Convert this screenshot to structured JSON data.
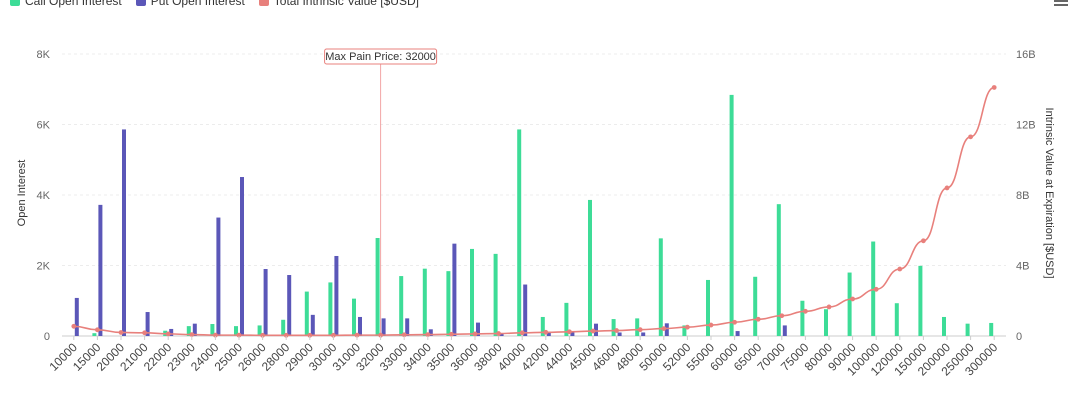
{
  "legend": {
    "call_label": "Call Open Interest",
    "put_label": "Put Open Interest",
    "intrinsic_label": "Total Intrinsic Value [$USD]"
  },
  "colors": {
    "call": "#3ddc97",
    "put": "#5b57b8",
    "intrinsic": "#e8807c",
    "maxpain": "#f2a6a6"
  },
  "chart_data": {
    "type": "bar",
    "max_pain_label": "Max Pain Price: 32000",
    "max_pain_strike": "32000",
    "ylabel_left": "Open Interest",
    "ylabel_right": "Intrinsic Value at Expiration [$USD]",
    "y_left_ticks": [
      "0",
      "2K",
      "4K",
      "6K",
      "8K"
    ],
    "y_right_ticks": [
      "0",
      "4B",
      "8B",
      "12B",
      "16B"
    ],
    "ylim_left": [
      0,
      8000
    ],
    "ylim_right": [
      0,
      16
    ],
    "categories": [
      "10000",
      "15000",
      "20000",
      "21000",
      "22000",
      "23000",
      "24000",
      "25000",
      "26000",
      "28000",
      "29000",
      "30000",
      "31000",
      "32000",
      "33000",
      "34000",
      "35000",
      "36000",
      "38000",
      "40000",
      "42000",
      "44000",
      "45000",
      "46000",
      "48000",
      "50000",
      "52000",
      "55000",
      "60000",
      "65000",
      "70000",
      "75000",
      "80000",
      "90000",
      "100000",
      "120000",
      "150000",
      "200000",
      "250000",
      "300000"
    ],
    "series": [
      {
        "name": "Call Open Interest",
        "values": [
          0,
          80,
          0,
          0,
          150,
          280,
          340,
          280,
          300,
          460,
          1260,
          1520,
          1060,
          2780,
          1700,
          1910,
          1840,
          2470,
          2330,
          5860,
          540,
          940,
          3860,
          480,
          500,
          2770,
          300,
          1590,
          6840,
          1680,
          3740,
          1000,
          760,
          1800,
          2680,
          930,
          1990,
          540,
          350,
          370
        ]
      },
      {
        "name": "Put Open Interest",
        "values": [
          1080,
          3720,
          5860,
          680,
          200,
          350,
          3360,
          4510,
          1900,
          1730,
          600,
          2270,
          540,
          500,
          500,
          190,
          2620,
          380,
          80,
          1460,
          100,
          140,
          350,
          100,
          100,
          360,
          0,
          0,
          140,
          0,
          300,
          0,
          0,
          0,
          0,
          0,
          0,
          0,
          0,
          0
        ]
      },
      {
        "name": "Total Intrinsic Value [$USD]",
        "values": [
          0.55,
          0.35,
          0.2,
          0.18,
          0.12,
          0.08,
          0.05,
          0.05,
          0.04,
          0.04,
          0.04,
          0.04,
          0.05,
          0.05,
          0.07,
          0.08,
          0.1,
          0.12,
          0.14,
          0.18,
          0.21,
          0.24,
          0.28,
          0.31,
          0.36,
          0.42,
          0.5,
          0.62,
          0.78,
          0.95,
          1.15,
          1.4,
          1.65,
          2.1,
          2.65,
          3.8,
          5.4,
          8.4,
          11.3,
          14.1
        ]
      }
    ]
  }
}
